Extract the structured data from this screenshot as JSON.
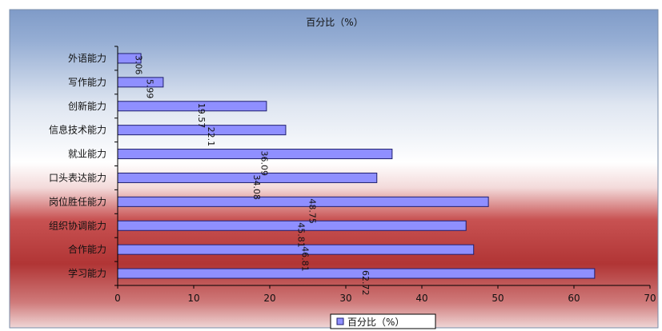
{
  "chart_data": {
    "type": "bar",
    "orientation": "horizontal",
    "title": "百分比（%）",
    "xlabel": "",
    "ylabel": "",
    "categories": [
      "外语能力",
      "写作能力",
      "创新能力",
      "信息技术能力",
      "就业能力",
      "口头表达能力",
      "岗位胜任能力",
      "组织协调能力",
      "合作能力",
      "学习能力"
    ],
    "series": [
      {
        "name": "百分比（%）",
        "values": [
          3.06,
          5.99,
          19.57,
          22.1,
          36.09,
          34.08,
          48.75,
          45.81,
          46.81,
          62.72
        ],
        "value_labels": [
          "3.06",
          "5.99",
          "19.57",
          "22.1",
          "36.09",
          "34.08",
          "48.75",
          "45.81",
          "46.81",
          "62.72"
        ]
      }
    ],
    "xlim": [
      0,
      70
    ],
    "xticks": [
      0,
      10,
      20,
      30,
      40,
      50,
      60,
      70
    ],
    "grid": false,
    "legend": "bottom",
    "colors": {
      "bar_fill": "#8f8fff",
      "bar_stroke": "#1e1e6e",
      "bg_top": "#7f9bc8",
      "bg_mid": "#ffffff",
      "bg_bottom": "#b63a3a"
    }
  }
}
